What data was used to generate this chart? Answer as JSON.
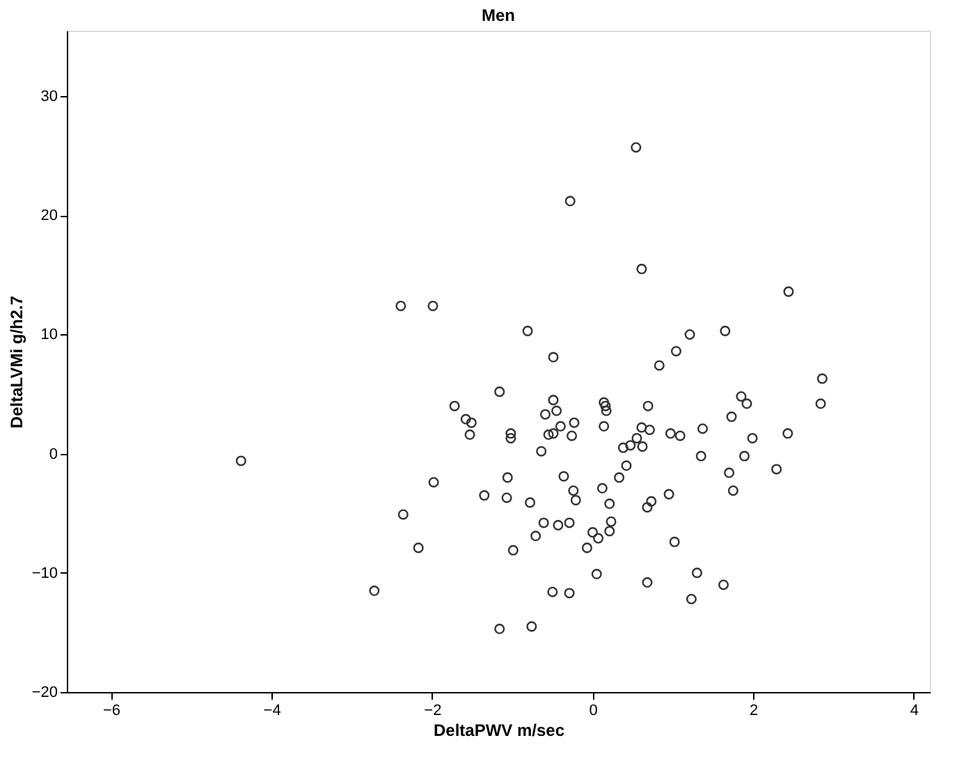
{
  "chart_data": {
    "type": "scatter",
    "title": "Men",
    "xlabel": "DeltaPWV  m/sec",
    "ylabel": "DeltaLVMi g/h2.7",
    "xlim": [
      -6.55,
      4.2
    ],
    "ylim": [
      -20,
      35.5
    ],
    "xticks": [
      -6,
      -4,
      -2,
      0,
      2,
      4
    ],
    "yticks": [
      -20,
      -10,
      0,
      10,
      20,
      30
    ],
    "grid": false,
    "marker": "circle",
    "series": [
      {
        "color": "#333333",
        "x": [
          -2.39,
          -1.99,
          0.54,
          -0.28,
          0.61,
          2.44,
          -0.81,
          -0.49,
          1.21,
          1.65,
          1.04,
          0.83,
          -1.16,
          -1.72,
          -1.58,
          -1.51,
          -1.53,
          -1.02,
          -1.02,
          -4.38,
          -1.06,
          -1.98,
          -1.35,
          -1.07,
          -2.36,
          -2.17,
          -0.99,
          -2.72,
          -1.16,
          2.86,
          2.84,
          1.85,
          1.92,
          1.73,
          -0.49,
          -0.59,
          -0.45,
          0.14,
          0.16,
          0.17,
          0.69,
          -0.23,
          -0.4,
          0.14,
          0.61,
          0.71,
          0.97,
          1.09,
          1.37,
          1.99,
          2.43,
          -0.55,
          -0.49,
          -0.26,
          0.55,
          0.38,
          0.47,
          0.62,
          -0.64,
          1.35,
          1.89,
          0.42,
          2.29,
          -0.36,
          0.33,
          1.7,
          -0.24,
          0.12,
          1.75,
          -0.21,
          0.21,
          0.95,
          0.73,
          0.68,
          -0.78,
          -0.61,
          -0.43,
          -0.29,
          0.23,
          0.21,
          -0.71,
          0.0,
          0.07,
          -0.07,
          1.02,
          0.05,
          0.68,
          1.3,
          1.63,
          1.23,
          -0.5,
          -0.29,
          -0.76
        ],
        "values": [
          12.4,
          12.4,
          25.7,
          21.2,
          15.5,
          13.6,
          10.3,
          8.1,
          10.0,
          10.3,
          8.6,
          7.4,
          5.2,
          4.0,
          2.9,
          2.6,
          1.6,
          1.7,
          1.3,
          -0.6,
          -2.0,
          -2.4,
          -3.5,
          -3.7,
          -5.1,
          -7.9,
          -8.1,
          -11.5,
          -14.7,
          6.3,
          4.2,
          4.8,
          4.2,
          3.1,
          4.5,
          3.3,
          3.6,
          4.3,
          4.0,
          3.6,
          4.0,
          2.6,
          2.3,
          2.3,
          2.2,
          2.0,
          1.7,
          1.5,
          2.1,
          1.3,
          1.7,
          1.6,
          1.7,
          1.5,
          1.3,
          0.5,
          0.7,
          0.6,
          0.2,
          -0.2,
          -0.2,
          -1.0,
          -1.3,
          -1.9,
          -2.0,
          -1.6,
          -3.1,
          -2.9,
          -3.1,
          -3.9,
          -4.2,
          -3.4,
          -4.0,
          -4.5,
          -4.1,
          -5.8,
          -6.0,
          -5.8,
          -5.7,
          -6.5,
          -6.9,
          -6.6,
          -7.1,
          -7.9,
          -7.4,
          -10.1,
          -10.8,
          -10.0,
          -11.0,
          -12.2,
          -11.6,
          -11.7,
          -14.5
        ]
      }
    ]
  }
}
